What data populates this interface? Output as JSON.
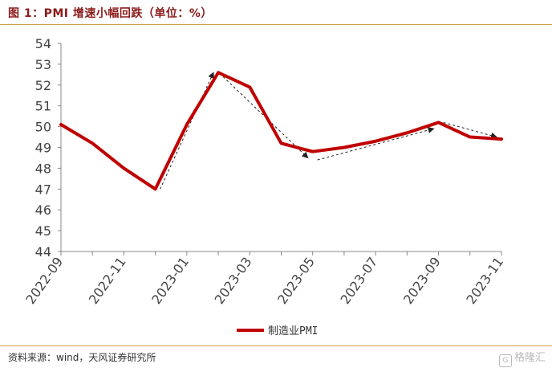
{
  "header": {
    "title": "图 1：PMI 增速小幅回跌（单位：%）"
  },
  "footer": {
    "source": "资料来源：wind，天风证券研究所",
    "watermark": "格隆汇"
  },
  "chart_data": {
    "type": "line",
    "title": "",
    "xlabel": "",
    "ylabel": "",
    "ylim": [
      44,
      54
    ],
    "yticks": [
      44,
      45,
      46,
      47,
      48,
      49,
      50,
      51,
      52,
      53,
      54
    ],
    "x": [
      "2022-09",
      "2022-10",
      "2022-11",
      "2022-12",
      "2023-01",
      "2023-02",
      "2023-03",
      "2023-04",
      "2023-05",
      "2023-06",
      "2023-07",
      "2023-08",
      "2023-09",
      "2023-10",
      "2023-11"
    ],
    "xtick_labels": [
      "2022-09",
      "2022-11",
      "2023-01",
      "2023-03",
      "2023-05",
      "2023-07",
      "2023-09",
      "2023-11"
    ],
    "series": [
      {
        "name": "制造业PMI",
        "color": "#c00000",
        "values": [
          50.1,
          49.2,
          48.0,
          47.0,
          50.1,
          52.6,
          51.9,
          49.2,
          48.8,
          49.0,
          49.3,
          49.7,
          50.2,
          49.5,
          49.4
        ]
      }
    ],
    "trend_arrows": [
      {
        "from": [
          "2022-12",
          47.0
        ],
        "to": [
          "2023-02",
          52.6
        ]
      },
      {
        "from": [
          "2023-02",
          52.4
        ],
        "to": [
          "2023-05",
          48.5
        ]
      },
      {
        "from": [
          "2023-05",
          48.4
        ],
        "to": [
          "2023-09",
          49.9
        ]
      },
      {
        "from": [
          "2023-09",
          50.2
        ],
        "to": [
          "2023-11",
          49.5
        ]
      }
    ],
    "legend_position": "bottom",
    "grid": false
  }
}
